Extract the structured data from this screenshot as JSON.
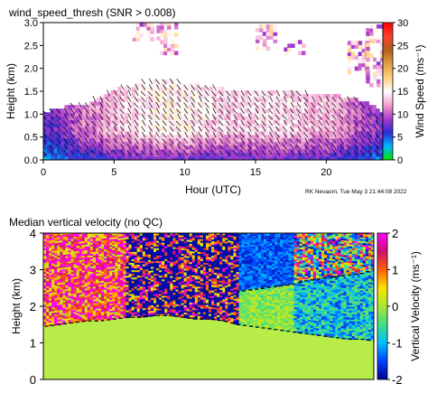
{
  "chart_data": [
    {
      "type": "heatmap",
      "title": "wind_speed_thresh (SNR > 0.008)",
      "xlabel": "Hour (UTC)",
      "ylabel": "Height (km)",
      "xlim": [
        0,
        24
      ],
      "ylim": [
        0,
        3
      ],
      "xticks": [
        "0",
        "5",
        "10",
        "15",
        "20"
      ],
      "yticks": [
        "0.0",
        "0.5",
        "1.0",
        "1.5",
        "2.0",
        "2.5",
        "3.0"
      ],
      "colorbar": {
        "label": "Wind Speed (ms⁻¹)",
        "ticks": [
          "0",
          "5",
          "10",
          "15",
          "20",
          "25",
          "30"
        ],
        "range": [
          0,
          30
        ],
        "stops": [
          "#00e600",
          "#00b4ff",
          "#2d2dd2",
          "#aa3ccc",
          "#f5a0d0",
          "#ffffff",
          "#ffd080",
          "#e0a040",
          "#b06020",
          "#ff4030",
          "#ff0000"
        ]
      },
      "footer": "RK Nevaom, Tue May  3 21:44:08 2022",
      "profile": {
        "x": [
          0,
          1,
          2,
          3,
          4,
          5,
          6,
          7,
          8,
          9,
          10,
          11,
          12,
          13,
          14,
          15,
          16,
          17,
          18,
          19,
          20,
          21,
          22,
          23,
          24
        ],
        "top_km": [
          1.0,
          1.1,
          1.15,
          1.2,
          1.35,
          1.5,
          1.6,
          1.65,
          1.7,
          1.7,
          1.65,
          1.6,
          1.55,
          1.5,
          1.45,
          1.5,
          1.45,
          1.5,
          1.45,
          1.4,
          1.4,
          1.35,
          1.3,
          1.2,
          0.9
        ],
        "speed_ms": [
          7,
          8,
          10,
          11,
          12,
          13,
          14,
          14.5,
          15,
          15,
          15,
          14.5,
          14,
          13.5,
          13.5,
          14,
          14,
          14,
          13.5,
          13,
          13,
          12,
          10,
          9,
          8
        ]
      }
    },
    {
      "type": "heatmap",
      "title": "Median vertical velocity (no QC)",
      "xlabel": "",
      "ylabel": "Height (km)",
      "xlim": [
        0,
        24
      ],
      "ylim": [
        0,
        4
      ],
      "yticks": [
        "0",
        "1",
        "2",
        "3",
        "4"
      ],
      "colorbar": {
        "label": "Vertical Velocity (ms⁻¹)",
        "ticks": [
          "-2",
          "-1",
          "0",
          "1",
          "2"
        ],
        "range": [
          -2,
          2
        ],
        "stops": [
          "#000090",
          "#0040ff",
          "#00c0ff",
          "#40e080",
          "#a8e832",
          "#ffe000",
          "#ff6000",
          "#d01070",
          "#ff00ff"
        ]
      },
      "boundary": {
        "x": [
          0,
          1,
          2,
          3,
          4,
          5,
          6,
          7,
          8,
          9,
          10,
          11,
          12,
          13,
          14,
          15,
          16,
          17,
          18,
          19,
          20,
          21,
          22,
          23,
          24
        ],
        "height_km": [
          1.45,
          1.5,
          1.55,
          1.6,
          1.6,
          1.65,
          1.7,
          1.7,
          1.75,
          1.75,
          1.7,
          1.65,
          1.65,
          1.6,
          1.5,
          1.45,
          1.4,
          1.35,
          1.3,
          1.25,
          1.2,
          1.15,
          1.1,
          1.1,
          1.05
        ]
      },
      "layer_top": {
        "x": [
          14,
          16,
          18,
          19,
          20,
          21,
          22,
          23,
          24
        ],
        "height_km": [
          2.4,
          2.5,
          2.6,
          2.7,
          2.75,
          2.8,
          2.85,
          2.9,
          3.0
        ]
      }
    }
  ]
}
